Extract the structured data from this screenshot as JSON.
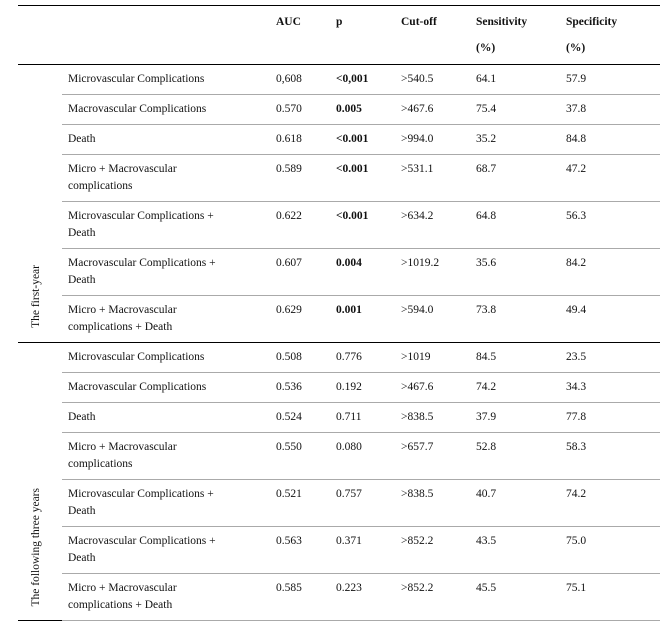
{
  "table": {
    "headers": [
      {
        "label": "AUC"
      },
      {
        "label": "p"
      },
      {
        "label": "Cut-off"
      },
      {
        "label": "Sensitivity",
        "unit": "(%)"
      },
      {
        "label": "Specificity",
        "unit": "(%)"
      }
    ],
    "groups": [
      {
        "label": "The first-year",
        "p_bold": true,
        "rows": [
          [
            "Microvascular Complications",
            "0,608",
            "<0,001",
            ">540.5",
            "64.1",
            "57.9"
          ],
          [
            "Macrovascular Complications",
            "0.570",
            "0.005",
            ">467.6",
            "75.4",
            "37.8"
          ],
          [
            "Death",
            "0.618",
            "<0.001",
            ">994.0",
            "35.2",
            "84.8"
          ],
          [
            "Micro + Macrovascular complications",
            "0.589",
            "<0.001",
            ">531.1",
            "68.7",
            "47.2"
          ],
          [
            "Microvascular Complications + Death",
            "0.622",
            "<0.001",
            ">634.2",
            "64.8",
            "56.3"
          ],
          [
            "Macrovascular Complications + Death",
            "0.607",
            "0.004",
            ">1019.2",
            "35.6",
            "84.2"
          ],
          [
            "Micro + Macrovascular complications + Death",
            "0.629",
            "0.001",
            ">594.0",
            "73.8",
            "49.4"
          ]
        ]
      },
      {
        "label": "The following three years",
        "p_bold": false,
        "rows": [
          [
            "Microvascular Complications",
            "0.508",
            "0.776",
            ">1019",
            "84.5",
            "23.5"
          ],
          [
            "Macrovascular Complications",
            "0.536",
            "0.192",
            ">467.6",
            "74.2",
            "34.3"
          ],
          [
            "Death",
            "0.524",
            "0.711",
            ">838.5",
            "37.9",
            "77.8"
          ],
          [
            "Micro + Macrovascular complications",
            "0.550",
            "0.080",
            ">657.7",
            "52.8",
            "58.3"
          ],
          [
            "Microvascular Complications + Death",
            "0.521",
            "0.757",
            ">838.5",
            "40.7",
            "74.2"
          ],
          [
            "Macrovascular Complications + Death",
            "0.563",
            "0.371",
            ">852.2",
            "43.5",
            "75.0"
          ],
          [
            "Micro + Macrovascular complications + Death",
            "0.585",
            "0.223",
            ">852.2",
            "45.5",
            "75.1"
          ]
        ]
      }
    ]
  }
}
